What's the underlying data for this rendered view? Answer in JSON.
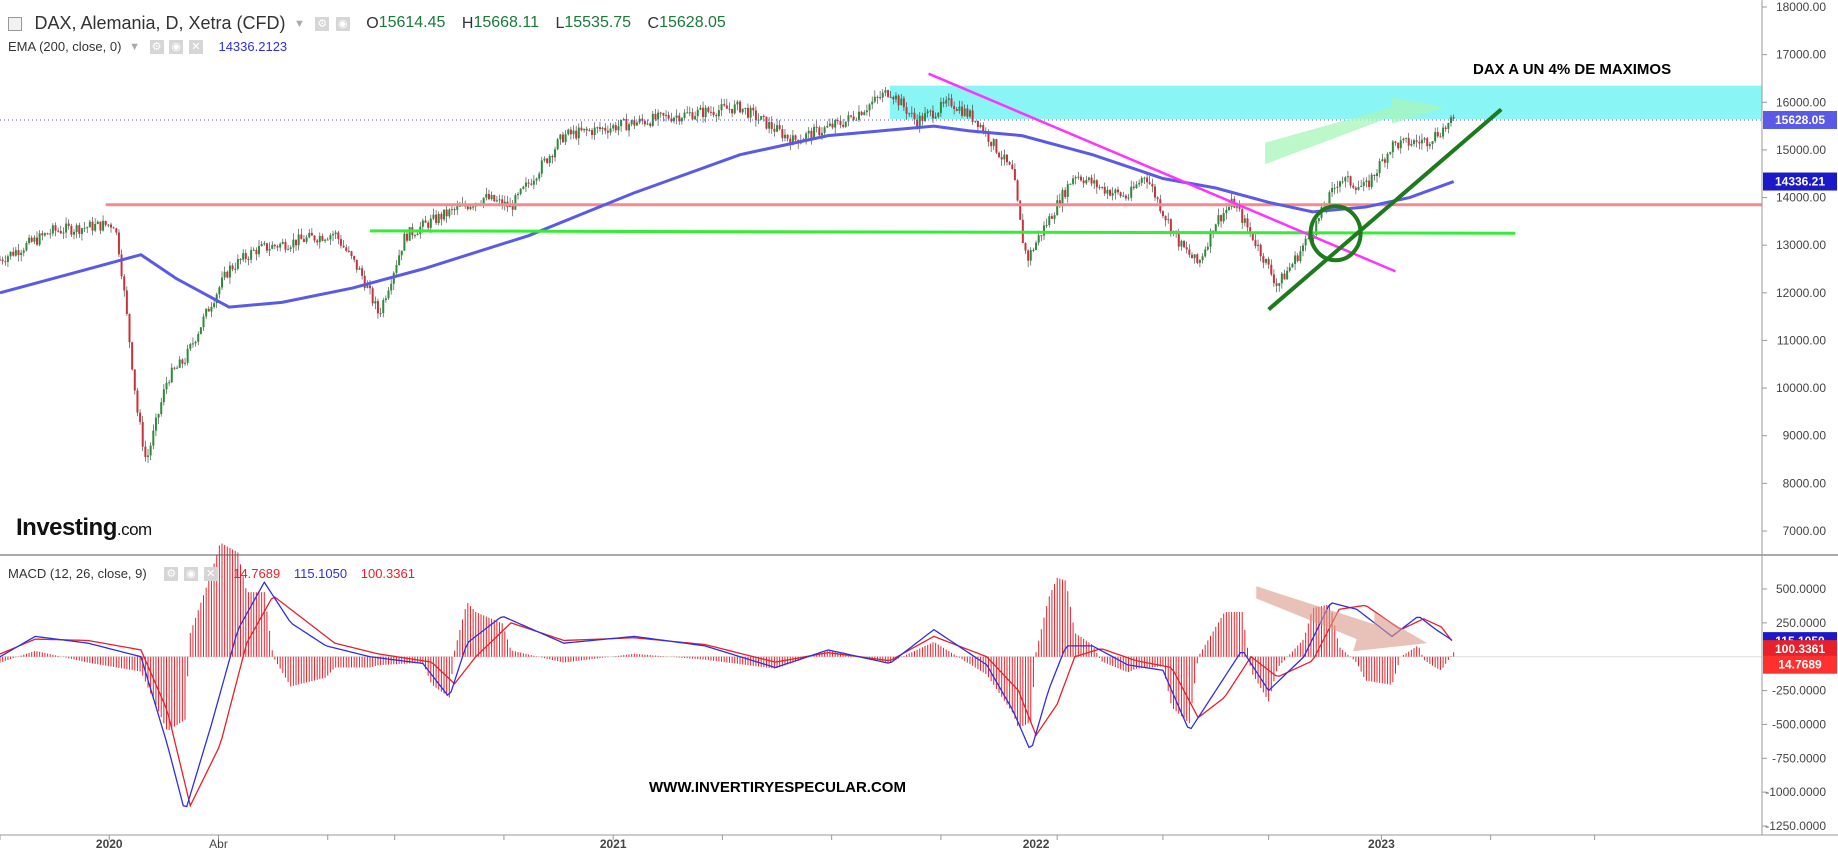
{
  "header": {
    "title": "DAX, Alemania, D, Xetra (CFD)",
    "ohlc": [
      {
        "label": "O",
        "value": "15614.45"
      },
      {
        "label": "H",
        "value": "15668.11"
      },
      {
        "label": "L",
        "value": "15535.75"
      },
      {
        "label": "C",
        "value": "15628.05"
      }
    ],
    "ema_label": "EMA (200, close, 0)",
    "ema_value": "14336.2123",
    "macd_label": "MACD (12, 26, close, 9)",
    "macd_values": [
      {
        "value": "14.7689",
        "color": "#e8202a"
      },
      {
        "value": "115.1050",
        "color": "#2f2fe0"
      },
      {
        "value": "100.3361",
        "color": "#e8202a"
      }
    ]
  },
  "logo": {
    "main": "Investing",
    "suffix": ".com"
  },
  "annotations": {
    "top": "DAX A UN 4% DE MAXIMOS",
    "bottom": "WWW.INVERTIRYESPECULAR.COM"
  },
  "colors": {
    "up_candle": "#2e8b3a",
    "down_candle": "#c8323c",
    "ema": "#5a5ae6",
    "support_line": "#33ee33",
    "resistance_line": "#ff33ff",
    "horizontal_level": "#f28c8c",
    "trend_line": "#1d7a1d",
    "resistance_zone": "#7df4f4",
    "macd_line": "#2f2fe0",
    "signal_line": "#e8202a",
    "histogram": "#e8202a"
  },
  "chart_data": [
    {
      "type": "candlestick",
      "title": "DAX, Alemania, D, Xetra (CFD)",
      "x_ticks": [
        "2020",
        "Abr",
        "2021",
        "2022",
        "2023"
      ],
      "y_ticks": [
        "18000.00",
        "17000.00",
        "16000.00",
        "15000.00",
        "14000.00",
        "13000.00",
        "12000.00",
        "11000.00",
        "10000.00",
        "9000.00",
        "8000.00",
        "7000.00"
      ],
      "ylim": [
        6500,
        18050
      ],
      "price_path": [
        [
          0,
          12700
        ],
        [
          30,
          13300
        ],
        [
          65,
          13450
        ],
        [
          68,
          12800
        ],
        [
          72,
          11500
        ],
        [
          78,
          9500
        ],
        [
          83,
          8450
        ],
        [
          95,
          10200
        ],
        [
          105,
          10600
        ],
        [
          120,
          11800
        ],
        [
          130,
          12500
        ],
        [
          145,
          12900
        ],
        [
          170,
          13100
        ],
        [
          190,
          13250
        ],
        [
          205,
          12400
        ],
        [
          215,
          11550
        ],
        [
          230,
          13200
        ],
        [
          250,
          13600
        ],
        [
          275,
          14000
        ],
        [
          290,
          13800
        ],
        [
          320,
          15300
        ],
        [
          350,
          15500
        ],
        [
          380,
          15700
        ],
        [
          420,
          15900
        ],
        [
          450,
          15200
        ],
        [
          480,
          15600
        ],
        [
          505,
          16250
        ],
        [
          520,
          15600
        ],
        [
          540,
          16000
        ],
        [
          555,
          15600
        ],
        [
          575,
          14500
        ],
        [
          580,
          13200
        ],
        [
          583,
          12700
        ],
        [
          590,
          13200
        ],
        [
          610,
          14500
        ],
        [
          625,
          14200
        ],
        [
          640,
          14000
        ],
        [
          650,
          14500
        ],
        [
          660,
          13700
        ],
        [
          670,
          13000
        ],
        [
          680,
          12600
        ],
        [
          690,
          13500
        ],
        [
          700,
          13900
        ],
        [
          715,
          12900
        ],
        [
          725,
          12150
        ],
        [
          735,
          12700
        ],
        [
          745,
          13300
        ],
        [
          760,
          14400
        ],
        [
          775,
          14200
        ],
        [
          790,
          15100
        ],
        [
          810,
          15200
        ],
        [
          825,
          15600
        ]
      ],
      "last_price_label": "15628.05",
      "ema_label": "14336.21",
      "ema_path": [
        [
          0,
          12000
        ],
        [
          40,
          12400
        ],
        [
          80,
          12800
        ],
        [
          100,
          12300
        ],
        [
          130,
          11700
        ],
        [
          160,
          11800
        ],
        [
          200,
          12100
        ],
        [
          240,
          12500
        ],
        [
          300,
          13200
        ],
        [
          360,
          14100
        ],
        [
          420,
          14900
        ],
        [
          470,
          15300
        ],
        [
          500,
          15400
        ],
        [
          530,
          15500
        ],
        [
          550,
          15400
        ],
        [
          580,
          15300
        ],
        [
          620,
          14900
        ],
        [
          660,
          14400
        ],
        [
          690,
          14200
        ],
        [
          720,
          13900
        ],
        [
          745,
          13700
        ],
        [
          775,
          13800
        ],
        [
          800,
          14000
        ],
        [
          825,
          14336
        ]
      ],
      "horizontal_level": 13850,
      "resistance_zone": [
        15650,
        16350
      ],
      "lines": [
        {
          "name": "support",
          "from": [
            210,
            13300
          ],
          "to": [
            860,
            13250
          ]
        },
        {
          "name": "resistance",
          "from": [
            527,
            16600
          ],
          "to": [
            792,
            12450
          ]
        },
        {
          "name": "trend",
          "from": [
            720,
            11650
          ],
          "to": [
            852,
            15850
          ]
        }
      ]
    },
    {
      "type": "line",
      "title": "MACD (12, 26, close, 9)",
      "y_ticks": [
        "500.0000",
        "250.0000",
        "-250.0000",
        "-500.0000",
        "-750.0000",
        "-1000.0000",
        "-1250.0000"
      ],
      "ylim": [
        -1300,
        700
      ],
      "value_labels": [
        "115.1050",
        "100.3361",
        "14.7689"
      ],
      "macd_path": [
        [
          0,
          0
        ],
        [
          20,
          150
        ],
        [
          50,
          100
        ],
        [
          80,
          0
        ],
        [
          95,
          -650
        ],
        [
          105,
          -1150
        ],
        [
          120,
          -500
        ],
        [
          135,
          200
        ],
        [
          150,
          550
        ],
        [
          165,
          250
        ],
        [
          185,
          80
        ],
        [
          210,
          0
        ],
        [
          240,
          -50
        ],
        [
          255,
          -300
        ],
        [
          265,
          100
        ],
        [
          285,
          300
        ],
        [
          320,
          100
        ],
        [
          360,
          150
        ],
        [
          400,
          80
        ],
        [
          440,
          -80
        ],
        [
          470,
          50
        ],
        [
          505,
          -50
        ],
        [
          530,
          200
        ],
        [
          560,
          -60
        ],
        [
          575,
          -400
        ],
        [
          585,
          -700
        ],
        [
          595,
          -250
        ],
        [
          605,
          80
        ],
        [
          620,
          80
        ],
        [
          640,
          -60
        ],
        [
          660,
          -100
        ],
        [
          675,
          -550
        ],
        [
          690,
          -250
        ],
        [
          705,
          50
        ],
        [
          720,
          -250
        ],
        [
          740,
          0
        ],
        [
          755,
          400
        ],
        [
          770,
          350
        ],
        [
          790,
          150
        ],
        [
          805,
          300
        ],
        [
          815,
          200
        ],
        [
          825,
          115
        ]
      ],
      "signal_path": [
        [
          0,
          20
        ],
        [
          20,
          130
        ],
        [
          50,
          120
        ],
        [
          80,
          50
        ],
        [
          95,
          -400
        ],
        [
          108,
          -1100
        ],
        [
          125,
          -650
        ],
        [
          140,
          100
        ],
        [
          155,
          450
        ],
        [
          170,
          300
        ],
        [
          190,
          100
        ],
        [
          215,
          20
        ],
        [
          245,
          -40
        ],
        [
          258,
          -200
        ],
        [
          270,
          0
        ],
        [
          290,
          250
        ],
        [
          320,
          120
        ],
        [
          360,
          140
        ],
        [
          400,
          90
        ],
        [
          440,
          -40
        ],
        [
          470,
          30
        ],
        [
          505,
          -30
        ],
        [
          530,
          150
        ],
        [
          560,
          0
        ],
        [
          578,
          -250
        ],
        [
          588,
          -580
        ],
        [
          600,
          -350
        ],
        [
          610,
          0
        ],
        [
          625,
          60
        ],
        [
          645,
          -30
        ],
        [
          665,
          -80
        ],
        [
          680,
          -450
        ],
        [
          695,
          -300
        ],
        [
          710,
          0
        ],
        [
          725,
          -150
        ],
        [
          745,
          -30
        ],
        [
          760,
          350
        ],
        [
          775,
          380
        ],
        [
          795,
          200
        ],
        [
          808,
          280
        ],
        [
          818,
          220
        ],
        [
          825,
          100
        ]
      ]
    }
  ]
}
